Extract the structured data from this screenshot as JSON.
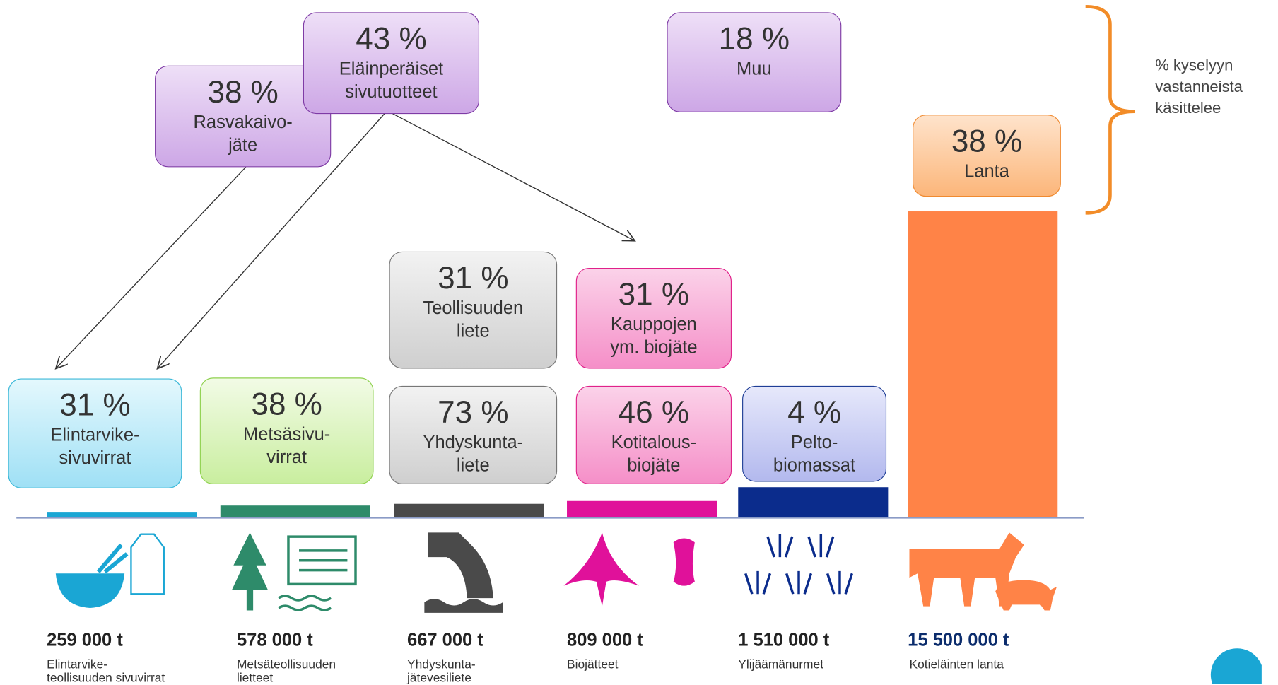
{
  "chart_data": {
    "type": "bar",
    "categories": [
      "Elintarvike-\nteollisuuden sivuvirrat",
      "Metsäteollisuuden\nlietteet",
      "Yhdyskunta-\njätevesiliete",
      "Biojätteet",
      "Ylijäämänurmet",
      "Kotieläinten lanta"
    ],
    "values": [
      259000,
      578000,
      667000,
      809000,
      1510000,
      15500000
    ],
    "value_labels": [
      "259 000 t",
      "578 000 t",
      "667 000 t",
      "809 000 t",
      "1 510 000 t",
      "15 500 000 t"
    ],
    "colors": [
      "#1aa6d4",
      "#2e8b6a",
      "#4a4a4a",
      "#e0119a",
      "#0b2c8c",
      "#ff8347"
    ],
    "ylim": [
      0,
      15500000
    ]
  },
  "boxes": [
    {
      "percent": "31 %",
      "label": "Elintarvike-\nsivuvirrat"
    },
    {
      "percent": "38 %",
      "label": "Metsäsivu-\nvirrat"
    },
    {
      "percent": "31 %",
      "label": "Teollisuuden\nliete"
    },
    {
      "percent": "73 %",
      "label": "Yhdyskunta-\nliete"
    },
    {
      "percent": "31 %",
      "label": "Kauppojen\nym. biojäte"
    },
    {
      "percent": "46 %",
      "label": "Kotitalous-\nbiojäte"
    },
    {
      "percent": "4 %",
      "label": "Pelto-\nbiomassat"
    },
    {
      "percent": "38 %",
      "label": "Lanta"
    },
    {
      "percent": "18 %",
      "label": "Muu"
    },
    {
      "percent": "38 %",
      "label": "Rasvakaivo-\njäte"
    },
    {
      "percent": "43 %",
      "label": "Eläinperäiset\nsivutuotteet"
    }
  ],
  "annotation": "% kyselyyn\nvastanneista\nkäsittelee"
}
